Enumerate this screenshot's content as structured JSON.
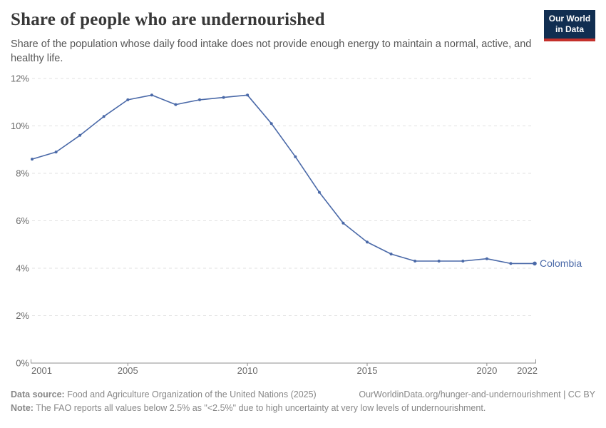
{
  "header": {
    "title": "Share of people who are undernourished",
    "subtitle": "Share of the population whose daily food intake does not provide enough energy to maintain a normal, active, and healthy life.",
    "logo_line1": "Our World",
    "logo_line2": "in Data"
  },
  "chart_data": {
    "type": "line",
    "title": "Share of people who are undernourished",
    "x": [
      2001,
      2002,
      2003,
      2004,
      2005,
      2006,
      2007,
      2008,
      2009,
      2010,
      2011,
      2012,
      2013,
      2014,
      2015,
      2016,
      2017,
      2018,
      2019,
      2020,
      2021,
      2022
    ],
    "series": [
      {
        "name": "Colombia",
        "values": [
          8.6,
          8.9,
          9.6,
          10.4,
          11.1,
          11.3,
          10.9,
          11.1,
          11.2,
          11.3,
          10.1,
          8.7,
          7.2,
          5.9,
          5.1,
          4.6,
          4.3,
          4.3,
          4.3,
          4.4,
          4.2,
          4.2
        ]
      }
    ],
    "xlim": [
      2001,
      2022
    ],
    "ylim": [
      0,
      12
    ],
    "x_ticks": [
      2001,
      2005,
      2010,
      2015,
      2020,
      2022
    ],
    "y_ticks": [
      0,
      2,
      4,
      6,
      8,
      10,
      12
    ],
    "y_suffix": "%",
    "grid": "horizontal-dashed",
    "legend_position": "end-of-line-label",
    "end_label": "Colombia"
  },
  "footer": {
    "datasource_label": "Data source:",
    "datasource_text": " Food and Agriculture Organization of the United Nations (2025)",
    "url_text": "OurWorldinData.org/hunger-and-undernourishment | CC BY",
    "note_label": "Note:",
    "note_text": " The FAO reports all values below 2.5% as \"<2.5%\" due to high uncertainty at very low levels of undernourishment."
  },
  "colors": {
    "line": "#4a69a8",
    "logo_navy": "#112e51",
    "logo_red": "#c4302b"
  }
}
